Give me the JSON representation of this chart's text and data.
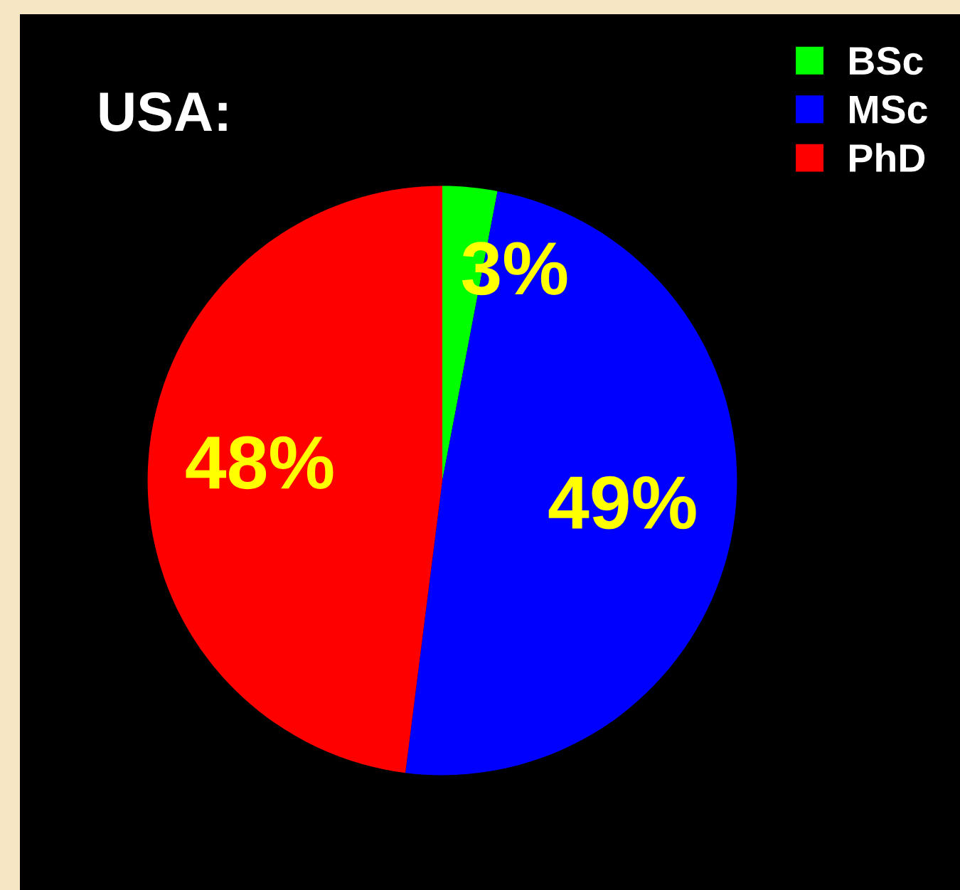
{
  "chart_data": {
    "type": "pie",
    "title": "USA:",
    "categories": [
      "BSc",
      "MSc",
      "PhD"
    ],
    "values": [
      3,
      49,
      48
    ],
    "colors": [
      "#00ff00",
      "#0000ff",
      "#ff0000"
    ],
    "value_labels": [
      "3%",
      "49%",
      "48%"
    ],
    "legend": "top right"
  }
}
